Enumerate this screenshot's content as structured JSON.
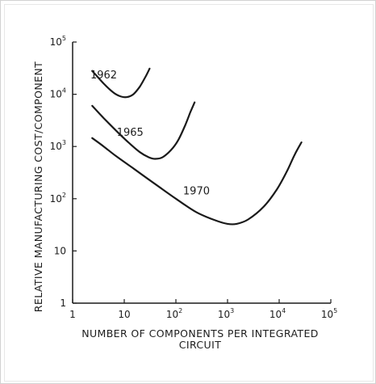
{
  "chart_data": {
    "type": "line",
    "title": "",
    "xlabel": "NUMBER OF COMPONENTS PER INTEGRATED",
    "xlabel_line2": "CIRCUIT",
    "ylabel": "RELATIVE MANUFACTURING COST/COMPONENT",
    "xscale": "log",
    "yscale": "log",
    "xlim": [
      1,
      100000
    ],
    "ylim": [
      1,
      100000
    ],
    "grid": false,
    "legend": "none",
    "x_ticks": [
      {
        "base": "1",
        "exp": ""
      },
      {
        "base": "10",
        "exp": ""
      },
      {
        "base": "10",
        "exp": "2"
      },
      {
        "base": "10",
        "exp": "3"
      },
      {
        "base": "10",
        "exp": "4"
      },
      {
        "base": "10",
        "exp": "5"
      }
    ],
    "y_ticks": [
      {
        "base": "1",
        "exp": ""
      },
      {
        "base": "10",
        "exp": ""
      },
      {
        "base": "10",
        "exp": "2"
      },
      {
        "base": "10",
        "exp": "3"
      },
      {
        "base": "10",
        "exp": "4"
      },
      {
        "base": "10",
        "exp": "5"
      }
    ],
    "series": [
      {
        "name": "1962",
        "label_at": {
          "x": 4,
          "y": 20000
        },
        "points": [
          [
            2.4,
            28000
          ],
          [
            4,
            16000
          ],
          [
            6,
            11000
          ],
          [
            8,
            9300
          ],
          [
            11,
            8800
          ],
          [
            15,
            10000
          ],
          [
            20,
            14000
          ],
          [
            26,
            22000
          ],
          [
            31,
            31000
          ]
        ]
      },
      {
        "name": "1965",
        "label_at": {
          "x": 13,
          "y": 1600
        },
        "points": [
          [
            2.4,
            6000
          ],
          [
            4,
            3500
          ],
          [
            7,
            2000
          ],
          [
            12,
            1200
          ],
          [
            20,
            780
          ],
          [
            30,
            620
          ],
          [
            40,
            580
          ],
          [
            55,
            620
          ],
          [
            80,
            850
          ],
          [
            110,
            1300
          ],
          [
            150,
            2500
          ],
          [
            190,
            4500
          ],
          [
            230,
            7000
          ]
        ]
      },
      {
        "name": "1970",
        "label_at": {
          "x": 250,
          "y": 120
        },
        "points": [
          [
            2.4,
            1450
          ],
          [
            4,
            1000
          ],
          [
            7,
            650
          ],
          [
            15,
            380
          ],
          [
            40,
            190
          ],
          [
            100,
            100
          ],
          [
            250,
            55
          ],
          [
            600,
            38
          ],
          [
            1000,
            33
          ],
          [
            1500,
            33
          ],
          [
            2500,
            40
          ],
          [
            5000,
            70
          ],
          [
            9000,
            150
          ],
          [
            14000,
            330
          ],
          [
            20000,
            700
          ],
          [
            27000,
            1200
          ]
        ]
      }
    ]
  }
}
